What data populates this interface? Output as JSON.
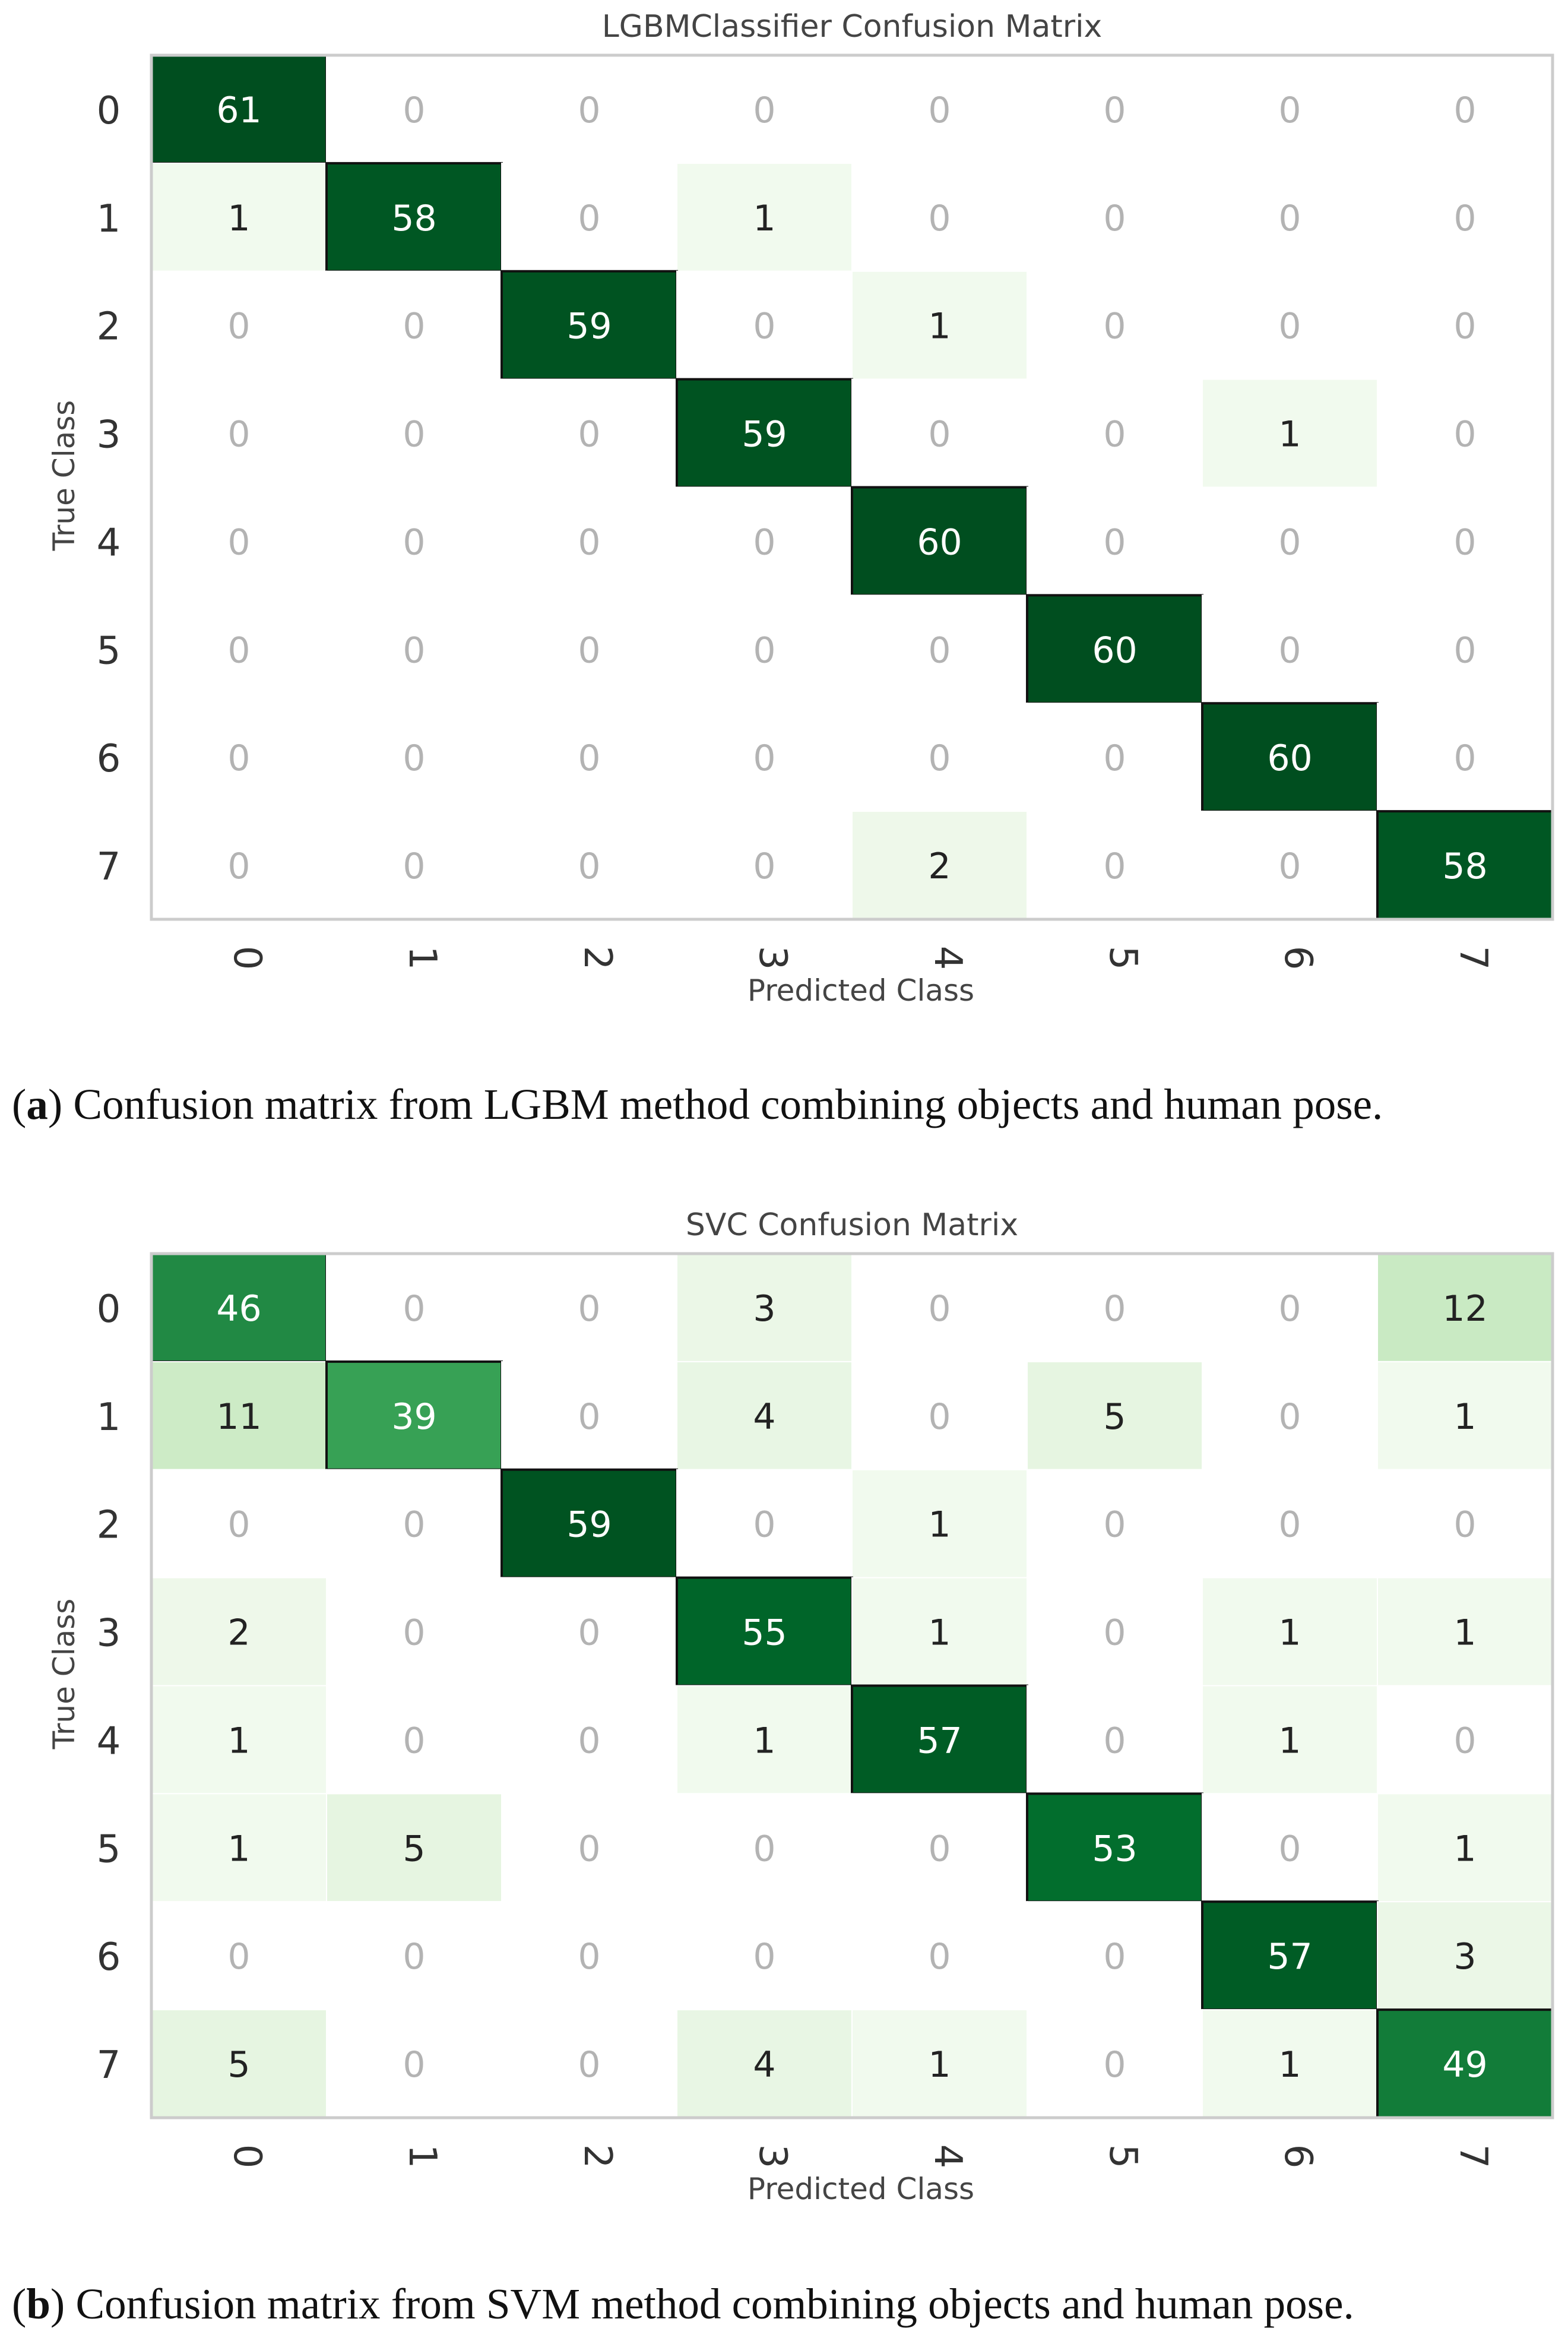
{
  "chart_data": [
    {
      "type": "heatmap",
      "title": "LGBMClassifier Confusion Matrix",
      "xlabel": "Predicted Class",
      "ylabel": "True Class",
      "row_labels": [
        "0",
        "1",
        "2",
        "3",
        "4",
        "5",
        "6",
        "7"
      ],
      "col_labels": [
        "0",
        "1",
        "2",
        "3",
        "4",
        "5",
        "6",
        "7"
      ],
      "values": [
        [
          61,
          0,
          0,
          0,
          0,
          0,
          0,
          0
        ],
        [
          1,
          58,
          0,
          1,
          0,
          0,
          0,
          0
        ],
        [
          0,
          0,
          59,
          0,
          1,
          0,
          0,
          0
        ],
        [
          0,
          0,
          0,
          59,
          0,
          0,
          1,
          0
        ],
        [
          0,
          0,
          0,
          0,
          60,
          0,
          0,
          0
        ],
        [
          0,
          0,
          0,
          0,
          0,
          60,
          0,
          0
        ],
        [
          0,
          0,
          0,
          0,
          0,
          0,
          60,
          0
        ],
        [
          0,
          0,
          0,
          0,
          2,
          0,
          0,
          58
        ]
      ],
      "colormap": "Greens",
      "caption_label": "a",
      "caption_text": " Confusion matrix from LGBM method combining objects and human pose."
    },
    {
      "type": "heatmap",
      "title": "SVC Confusion Matrix",
      "xlabel": "Predicted Class",
      "ylabel": "True Class",
      "row_labels": [
        "0",
        "1",
        "2",
        "3",
        "4",
        "5",
        "6",
        "7"
      ],
      "col_labels": [
        "0",
        "1",
        "2",
        "3",
        "4",
        "5",
        "6",
        "7"
      ],
      "values": [
        [
          46,
          0,
          0,
          3,
          0,
          0,
          0,
          12
        ],
        [
          11,
          39,
          0,
          4,
          0,
          5,
          0,
          1
        ],
        [
          0,
          0,
          59,
          0,
          1,
          0,
          0,
          0
        ],
        [
          2,
          0,
          0,
          55,
          1,
          0,
          1,
          1
        ],
        [
          1,
          0,
          0,
          1,
          57,
          0,
          1,
          0
        ],
        [
          1,
          5,
          0,
          0,
          0,
          53,
          0,
          1
        ],
        [
          0,
          0,
          0,
          0,
          0,
          0,
          57,
          3
        ],
        [
          5,
          0,
          0,
          4,
          1,
          0,
          1,
          49
        ]
      ],
      "colormap": "Greens",
      "caption_label": "b",
      "caption_text": " Confusion matrix from SVM method combining objects and human pose."
    }
  ]
}
